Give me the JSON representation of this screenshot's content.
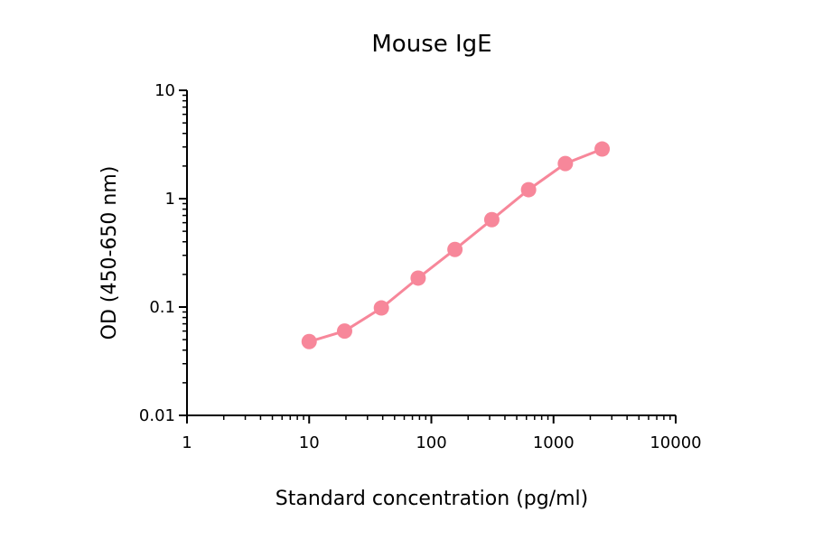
{
  "chart_data": {
    "type": "line",
    "title": "Mouse IgE",
    "xlabel": "Standard concentration (pg/ml)",
    "ylabel": "OD (450-650 nm)",
    "x_scale": "log",
    "y_scale": "log",
    "xlim": [
      1,
      10000
    ],
    "ylim": [
      0.01,
      10
    ],
    "x_ticks": [
      1,
      10,
      100,
      1000,
      10000
    ],
    "x_tick_labels": [
      "1",
      "10",
      "100",
      "1000",
      "10000"
    ],
    "y_ticks": [
      0.01,
      0.1,
      1,
      10
    ],
    "y_tick_labels": [
      "0.01",
      "0.1",
      "1",
      "10"
    ],
    "grid": false,
    "color": "#f7879a",
    "series": [
      {
        "x": [
          10,
          19.5,
          39,
          78,
          156,
          312.5,
          625,
          1250,
          2500
        ],
        "y": [
          0.048,
          0.06,
          0.098,
          0.185,
          0.34,
          0.64,
          1.21,
          2.11,
          2.87
        ]
      }
    ]
  }
}
